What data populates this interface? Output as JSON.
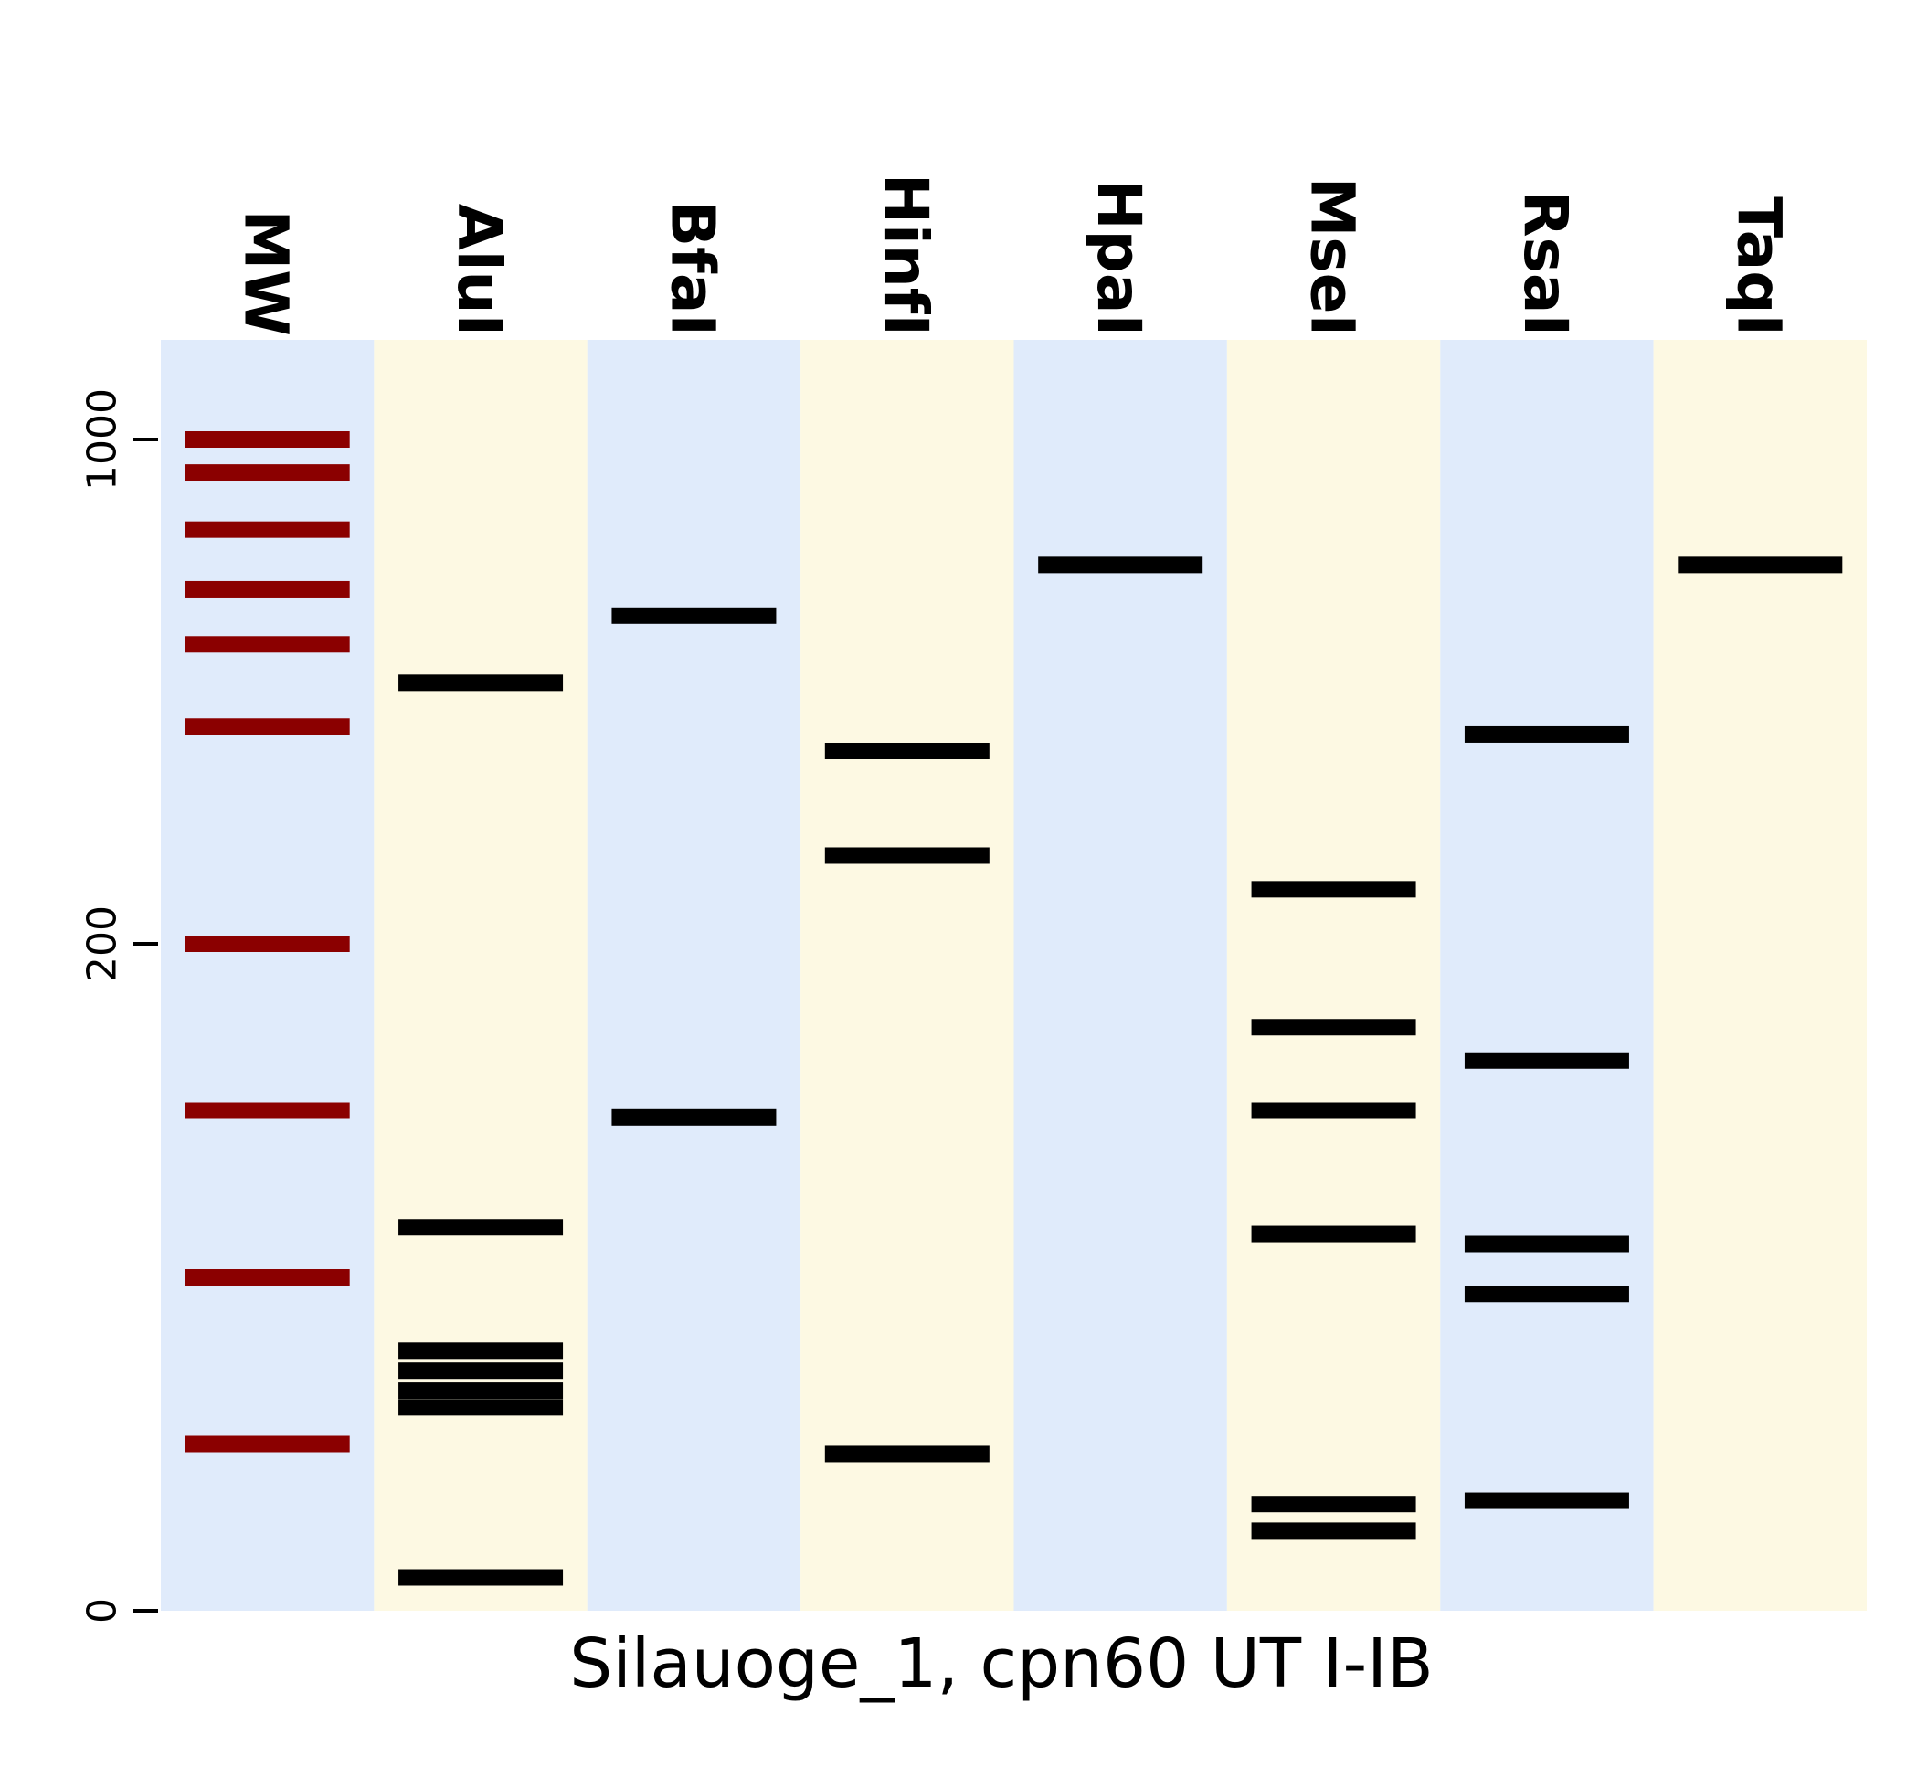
{
  "chart_data": {
    "type": "gel",
    "xlabel": "Silauoge_1, cpn60 UT I-IB",
    "ylabel": "",
    "y_scale": "piecewise",
    "y_ticks": [
      {
        "value": 0,
        "label": "0"
      },
      {
        "value": 200,
        "label": "200"
      },
      {
        "value": 1000,
        "label": "1000"
      }
    ],
    "lane_colors": [
      "#e0ebfb",
      "#fdf9e3"
    ],
    "marker_color": "#8b0000",
    "band_color": "#000000",
    "lanes": [
      {
        "name": "MW",
        "marker": true,
        "bands": [
          1000,
          900,
          750,
          620,
          520,
          400,
          200,
          150,
          100,
          50
        ]
      },
      {
        "name": "AluI",
        "marker": false,
        "bands": [
          460,
          115,
          78,
          72,
          66,
          61,
          10
        ]
      },
      {
        "name": "BfaI",
        "marker": false,
        "bands": [
          570,
          148
        ]
      },
      {
        "name": "HinfI",
        "marker": false,
        "bands": [
          370,
          265,
          47
        ]
      },
      {
        "name": "HpaI",
        "marker": false,
        "bands": [
          670
        ]
      },
      {
        "name": "MseI",
        "marker": false,
        "bands": [
          238,
          175,
          150,
          113,
          32,
          24
        ]
      },
      {
        "name": "RsaI",
        "marker": false,
        "bands": [
          390,
          165,
          110,
          95,
          33
        ]
      },
      {
        "name": "TaqI",
        "marker": false,
        "bands": [
          670
        ]
      }
    ]
  }
}
